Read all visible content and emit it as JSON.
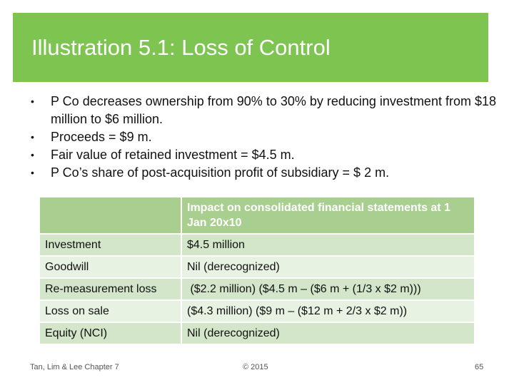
{
  "slide": {
    "title": "Illustration 5.1: Loss of Control",
    "accent_color": "#7dc451"
  },
  "bullets": [
    "P Co decreases ownership from 90% to 30% by reducing investment from $18 million to $6 million.",
    "Proceeds = $9 m.",
    "Fair value of retained investment = $4.5 m.",
    "P Co’s share of post-acquisition profit of subsidiary = $ 2 m."
  ],
  "table": {
    "header_blank": "",
    "header": "Impact on consolidated financial statements at 1 Jan 20x10",
    "rows": [
      {
        "label": "Investment",
        "value": "$4.5 million"
      },
      {
        "label": "Goodwill",
        "value": "Nil (derecognized)"
      },
      {
        "label": "Re-measurement loss",
        "value": " ($2.2 million) ($4.5 m – ($6 m + (1/3 x $2 m)))"
      },
      {
        "label": "Loss on sale",
        "value": "($4.3 million) ($9 m – ($12 m + 2/3 x $2 m))"
      },
      {
        "label": "Equity (NCI)",
        "value": "Nil (derecognized)"
      }
    ]
  },
  "footer": {
    "left": "Tan, Lim & Lee Chapter 7",
    "center": "© 2015",
    "page_number": "65"
  }
}
